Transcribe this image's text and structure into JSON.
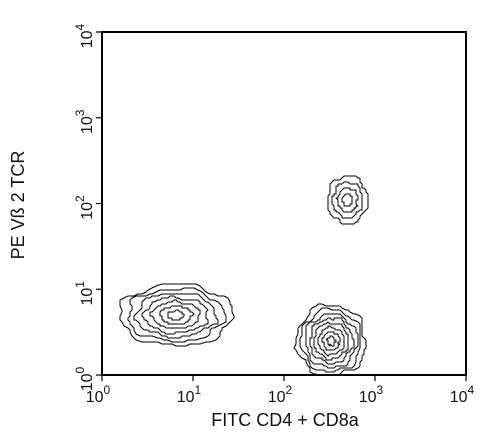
{
  "chart_data": {
    "type": "contour",
    "xlabel": "FITC CD4 + CD8a",
    "ylabel": "PE Vß 2 TCR",
    "xscale": "log",
    "yscale": "log",
    "xlim": [
      1,
      10000
    ],
    "ylim": [
      1,
      10000
    ],
    "x_ticks": [
      {
        "base": "10",
        "exp": "0"
      },
      {
        "base": "10",
        "exp": "1"
      },
      {
        "base": "10",
        "exp": "2"
      },
      {
        "base": "10",
        "exp": "3"
      },
      {
        "base": "10",
        "exp": "4"
      }
    ],
    "y_ticks": [
      {
        "base": "10",
        "exp": "0"
      },
      {
        "base": "10",
        "exp": "1"
      },
      {
        "base": "10",
        "exp": "2"
      },
      {
        "base": "10",
        "exp": "3"
      },
      {
        "base": "10",
        "exp": "4"
      }
    ],
    "populations": [
      {
        "x": 6.5,
        "y": 5.0,
        "x_spread": 0.62,
        "y_spread": 0.36,
        "levels": 7
      },
      {
        "x": 330,
        "y": 2.5,
        "x_spread": 0.38,
        "y_spread": 0.42,
        "levels": 8
      },
      {
        "x": 500,
        "y": 110,
        "x_spread": 0.22,
        "y_spread": 0.28,
        "levels": 4
      }
    ],
    "grid": false,
    "legend": "none"
  }
}
